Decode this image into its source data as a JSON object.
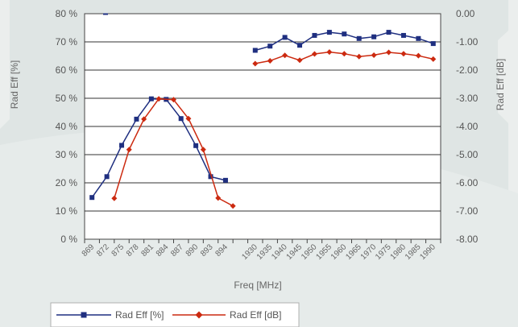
{
  "chart_data": {
    "type": "line",
    "xlabel": "Freq [MHz]",
    "ylabel": "Rad Eff [%]",
    "y2label": "Rad Eff [dB]",
    "categories": [
      "869",
      "872",
      "875",
      "878",
      "881",
      "884",
      "887",
      "890",
      "893",
      "894",
      "",
      "1930",
      "1935",
      "1940",
      "1945",
      "1950",
      "1955",
      "1960",
      "1965",
      "1970",
      "1975",
      "1980",
      "1985",
      "1990"
    ],
    "yticks": [
      "80 %",
      "70 %",
      "60 %",
      "50 %",
      "40 %",
      "30 %",
      "20 %",
      "10 %",
      "0 %"
    ],
    "y2ticks": [
      "0.00",
      "-1.00",
      "-2.00",
      "-3.00",
      "-4.00",
      "-5.00",
      "-6.00",
      "-7.00",
      "-8.00"
    ],
    "ylim": [
      0,
      80
    ],
    "y2lim": [
      -8,
      0
    ],
    "grid": true,
    "legend_position": "bottom-left",
    "series": [
      {
        "name": "Rad Eff [%]",
        "axis": "left",
        "color": "#1f2f80",
        "marker": "square",
        "segments": [
          [
            [
              0,
              14.8
            ],
            [
              1,
              22.2
            ],
            [
              2,
              33.3
            ],
            [
              3,
              42.6
            ],
            [
              4,
              49.8
            ],
            [
              5,
              49.6
            ],
            [
              6,
              42.8
            ],
            [
              7,
              33.2
            ],
            [
              8,
              22.2
            ],
            [
              9,
              20.9
            ]
          ],
          [
            [
              11,
              67.0
            ],
            [
              12,
              68.5
            ],
            [
              13,
              71.6
            ],
            [
              14,
              68.8
            ],
            [
              15,
              72.3
            ],
            [
              16,
              73.4
            ],
            [
              17,
              72.8
            ],
            [
              18,
              71.2
            ],
            [
              19,
              71.8
            ],
            [
              20,
              73.4
            ],
            [
              21,
              72.3
            ],
            [
              22,
              71.2
            ],
            [
              23,
              69.4
            ]
          ]
        ]
      },
      {
        "name": "Rad Eff [dB]",
        "axis": "right",
        "color": "#cc2a10",
        "marker": "diamond",
        "segments": [
          [
            [
              1.5,
              -6.55
            ],
            [
              2.5,
              -4.82
            ],
            [
              3.5,
              -3.74
            ],
            [
              4.5,
              -3.02
            ],
            [
              5.5,
              -3.05
            ],
            [
              6.5,
              -3.72
            ],
            [
              7.5,
              -4.82
            ],
            [
              8.5,
              -6.54
            ],
            [
              9.5,
              -6.82
            ]
          ],
          [
            [
              11,
              -1.77
            ],
            [
              12,
              -1.67
            ],
            [
              13,
              -1.48
            ],
            [
              14,
              -1.65
            ],
            [
              15,
              -1.43
            ],
            [
              16,
              -1.36
            ],
            [
              17,
              -1.42
            ],
            [
              18,
              -1.52
            ],
            [
              19,
              -1.47
            ],
            [
              20,
              -1.37
            ],
            [
              21,
              -1.42
            ],
            [
              22,
              -1.49
            ],
            [
              23,
              -1.61
            ]
          ]
        ]
      }
    ],
    "legend": [
      "Rad Eff [%]",
      "Rad Eff [dB]"
    ]
  }
}
